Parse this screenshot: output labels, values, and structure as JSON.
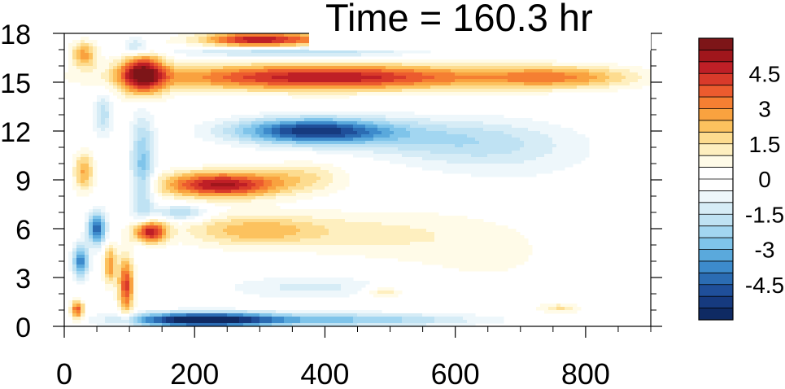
{
  "chart_data": {
    "type": "heatmap",
    "title": "Time = 160.3 hr",
    "xlabel": "",
    "ylabel": "",
    "xlim": [
      0,
      900
    ],
    "ylim": [
      0,
      18
    ],
    "x_ticks": [
      0,
      200,
      400,
      600,
      800
    ],
    "y_ticks": [
      0,
      3,
      6,
      9,
      12,
      15,
      18
    ],
    "grid": false,
    "colorbar": {
      "placement": "right",
      "range": [
        -6,
        6
      ],
      "step": 0.5,
      "tick_labels": [
        "4.5",
        "3",
        "1.5",
        "0",
        "-1.5",
        "-3",
        "-4.5"
      ],
      "tick_values": [
        4.5,
        3,
        1.5,
        0,
        -1.5,
        -3,
        -4.5
      ],
      "colors": [
        "#7d1518",
        "#a0161c",
        "#bf1f26",
        "#d93a2a",
        "#ec5b2e",
        "#f57f32",
        "#f9a23f",
        "#fcc25e",
        "#fddc8f",
        "#feefbf",
        "#fffbe8",
        "#ffffff",
        "#ffffff",
        "#eef7fb",
        "#d6ecf6",
        "#bfe2f3",
        "#a2d6f1",
        "#7fc4ea",
        "#5aa9dc",
        "#3d8bcc",
        "#2b6cb3",
        "#1f4f9a",
        "#163a7f",
        "#0f2a63"
      ]
    },
    "blobs": [
      {
        "x": 120,
        "y": 15.5,
        "sx": 35,
        "sy": 1.3,
        "v": 5.2
      },
      {
        "x": 400,
        "y": 15.3,
        "sx": 260,
        "sy": 0.8,
        "v": 5.0
      },
      {
        "x": 760,
        "y": 15.3,
        "sx": 120,
        "sy": 0.7,
        "v": 2.6
      },
      {
        "x": 300,
        "y": 17.6,
        "sx": 90,
        "sy": 0.5,
        "v": 5.0
      },
      {
        "x": 420,
        "y": 17.6,
        "sx": 50,
        "sy": 0.5,
        "v": 2.0
      },
      {
        "x": 350,
        "y": 16.9,
        "sx": 170,
        "sy": 0.35,
        "v": -2.6
      },
      {
        "x": 380,
        "y": 12.0,
        "sx": 120,
        "sy": 0.8,
        "v": -5.2
      },
      {
        "x": 580,
        "y": 11.5,
        "sx": 160,
        "sy": 1.3,
        "v": -1.6
      },
      {
        "x": 680,
        "y": 10.5,
        "sx": 140,
        "sy": 1.8,
        "v": -0.8
      },
      {
        "x": 240,
        "y": 8.7,
        "sx": 90,
        "sy": 0.8,
        "v": 5.2
      },
      {
        "x": 370,
        "y": 9.2,
        "sx": 70,
        "sy": 1.0,
        "v": 1.4
      },
      {
        "x": 290,
        "y": 5.9,
        "sx": 110,
        "sy": 1.0,
        "v": 2.3
      },
      {
        "x": 480,
        "y": 5.7,
        "sx": 140,
        "sy": 1.5,
        "v": 1.0
      },
      {
        "x": 650,
        "y": 4.5,
        "sx": 130,
        "sy": 2.5,
        "v": 0.6
      },
      {
        "x": 130,
        "y": 5.8,
        "sx": 25,
        "sy": 0.7,
        "v": 5.2
      },
      {
        "x": 95,
        "y": 2.5,
        "sx": 12,
        "sy": 1.8,
        "v": 4.2
      },
      {
        "x": 210,
        "y": 0.4,
        "sx": 110,
        "sy": 0.45,
        "v": -6.0
      },
      {
        "x": 430,
        "y": 0.4,
        "sx": 200,
        "sy": 0.4,
        "v": -2.6
      },
      {
        "x": 380,
        "y": 2.4,
        "sx": 130,
        "sy": 0.7,
        "v": -1.2
      },
      {
        "x": 490,
        "y": 2.1,
        "sx": 30,
        "sy": 0.4,
        "v": 1.6
      },
      {
        "x": 760,
        "y": 1.1,
        "sx": 30,
        "sy": 0.3,
        "v": 1.5
      },
      {
        "x": 120,
        "y": 9.5,
        "sx": 18,
        "sy": 3.5,
        "v": -2.8
      },
      {
        "x": 180,
        "y": 7.0,
        "sx": 40,
        "sy": 0.5,
        "v": -2.2
      },
      {
        "x": 50,
        "y": 6.0,
        "sx": 14,
        "sy": 1.0,
        "v": -4.5
      },
      {
        "x": 25,
        "y": 4.0,
        "sx": 12,
        "sy": 1.0,
        "v": -4.0
      },
      {
        "x": 70,
        "y": 3.8,
        "sx": 10,
        "sy": 1.2,
        "v": 3.0
      },
      {
        "x": 20,
        "y": 1.0,
        "sx": 10,
        "sy": 0.6,
        "v": 3.8
      },
      {
        "x": 30,
        "y": 9.5,
        "sx": 15,
        "sy": 1.2,
        "v": 2.6
      },
      {
        "x": 60,
        "y": 13.0,
        "sx": 15,
        "sy": 1.3,
        "v": -1.8
      },
      {
        "x": 30,
        "y": 16.7,
        "sx": 20,
        "sy": 0.8,
        "v": 2.8
      },
      {
        "x": 110,
        "y": 17.2,
        "sx": 20,
        "sy": 0.6,
        "v": -2.0
      }
    ]
  }
}
